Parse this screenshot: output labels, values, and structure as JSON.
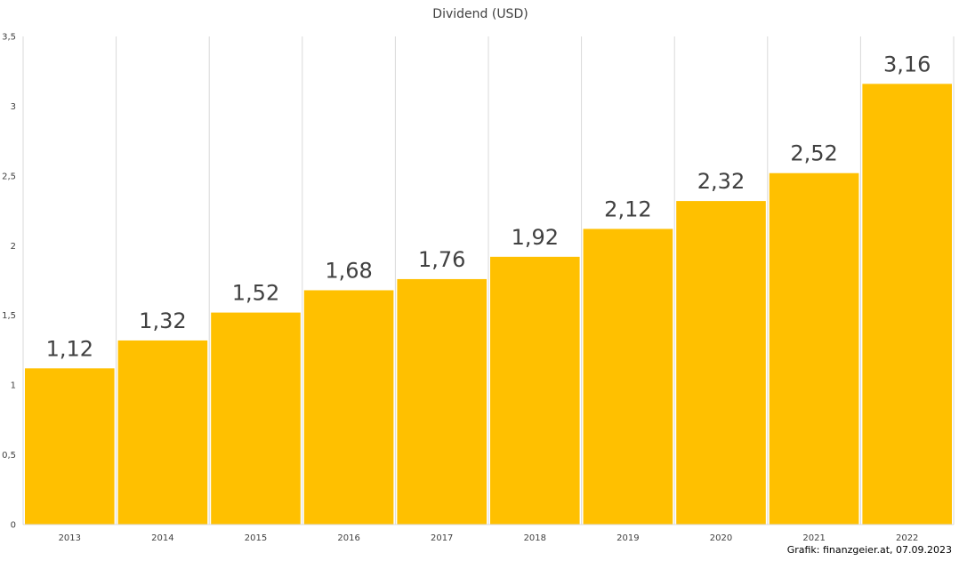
{
  "chart_data": {
    "type": "bar",
    "title": "Dividend (USD)",
    "categories": [
      "2013",
      "2014",
      "2015",
      "2016",
      "2017",
      "2018",
      "2019",
      "2020",
      "2021",
      "2022"
    ],
    "values": [
      1.12,
      1.32,
      1.52,
      1.68,
      1.76,
      1.92,
      2.12,
      2.32,
      2.52,
      3.16
    ],
    "data_labels": [
      "1,12",
      "1,32",
      "1,52",
      "1,68",
      "1,76",
      "1,92",
      "2,12",
      "2,32",
      "2,52",
      "3,16"
    ],
    "ylim": [
      0,
      3.5
    ],
    "yticks": [
      0,
      0.5,
      1,
      1.5,
      2,
      2.5,
      3,
      3.5
    ],
    "ytick_labels": [
      "0",
      "0,5",
      "1",
      "1,5",
      "2",
      "2,5",
      "3",
      "3,5"
    ],
    "xlabel": "",
    "ylabel": "",
    "grid": "vertical",
    "legend": "none",
    "bar_color": "#FFC000",
    "grid_color": "#D9D9D9",
    "text_color": "#404040"
  },
  "footer": {
    "credit": "Grafik: finanzgeier.at, 07.09.2023"
  }
}
